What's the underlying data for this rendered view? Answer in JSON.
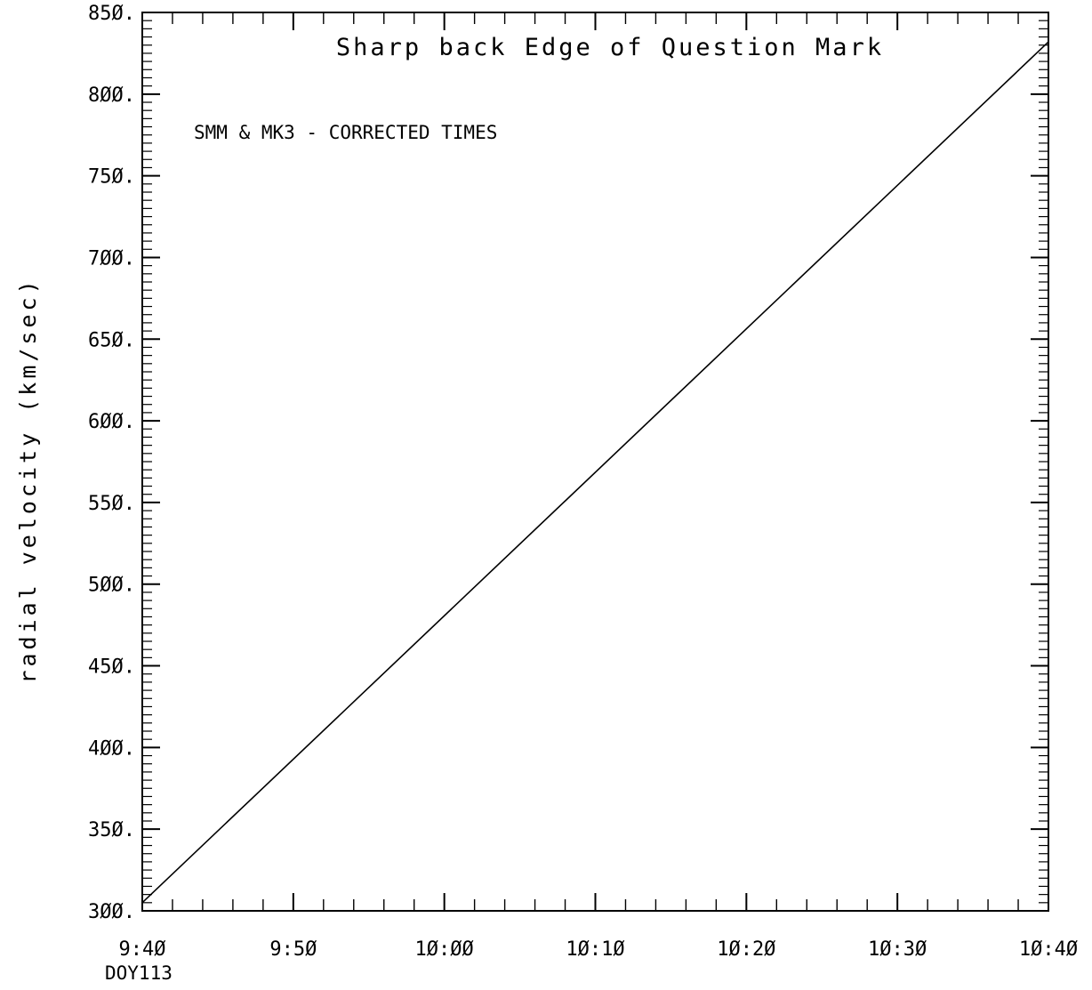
{
  "chart_data": {
    "type": "line",
    "title": "Sharp back Edge of Question Mark",
    "annotation": "SMM & MK3 - CORRECTED TIMES",
    "xlabel": "",
    "ylabel": "radial velocity (km/sec)",
    "x_axis_note": "DOY113",
    "x_tick_labels": [
      "9:4Ø",
      "9:5Ø",
      "1Ø:ØØ",
      "1Ø:1Ø",
      "1Ø:2Ø",
      "1Ø:3Ø",
      "1Ø:4Ø"
    ],
    "x_tick_values": [
      "9:40",
      "9:50",
      "10:00",
      "10:10",
      "10:20",
      "10:30",
      "10:40"
    ],
    "y_tick_labels": [
      "3ØØ.",
      "35Ø.",
      "4ØØ.",
      "45Ø.",
      "5ØØ.",
      "55Ø.",
      "6ØØ.",
      "65Ø.",
      "7ØØ.",
      "75Ø.",
      "8ØØ.",
      "85Ø."
    ],
    "y_tick_values": [
      300,
      350,
      400,
      450,
      500,
      550,
      600,
      650,
      700,
      750,
      800,
      850
    ],
    "xlim": [
      "9:40",
      "10:40"
    ],
    "ylim": [
      300,
      850
    ],
    "grid": false,
    "series": [
      {
        "x": [
          "9:40",
          "10:40"
        ],
        "y": [
          305,
          832
        ]
      }
    ]
  },
  "colors": {
    "line": "#000000",
    "axes": "#000000",
    "background": "#ffffff"
  }
}
